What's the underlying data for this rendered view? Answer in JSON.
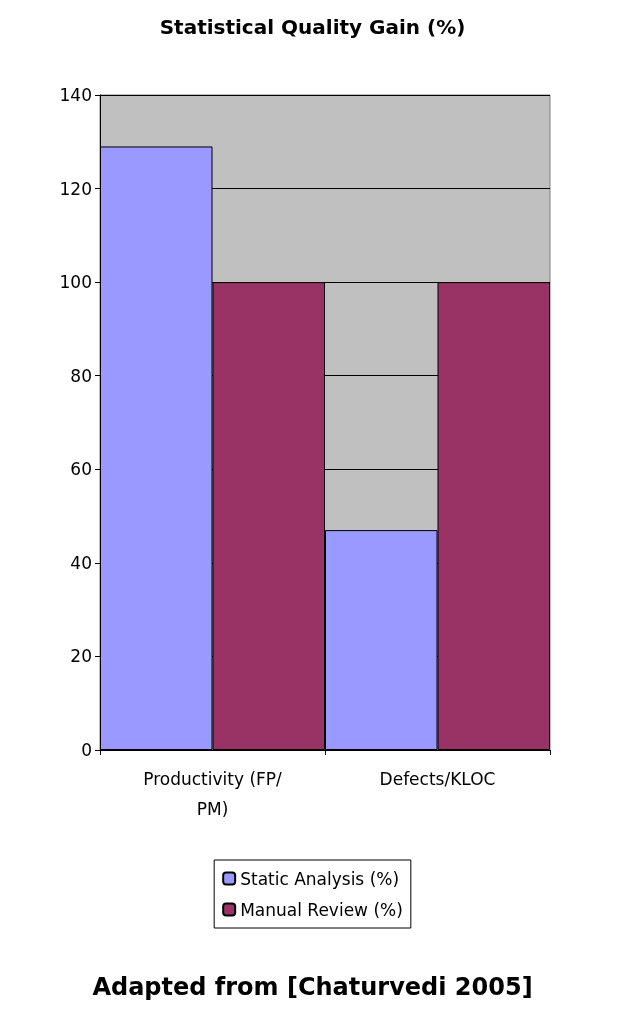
{
  "chart_data": {
    "type": "bar",
    "title": "Statistical Quality Gain (%)",
    "categories": [
      "Productivity (FP/PM)",
      "Defects/KLOC"
    ],
    "series": [
      {
        "name": "Static Analysis (%)",
        "color": "#9999ff",
        "values": [
          129,
          47
        ]
      },
      {
        "name": "Manual Review (%)",
        "color": "#993366",
        "values": [
          100,
          100
        ]
      }
    ],
    "ylim": [
      0,
      140
    ],
    "yticks": [
      0,
      20,
      40,
      60,
      80,
      100,
      120,
      140
    ],
    "grid": "y",
    "legend": "bottom",
    "annotations": [
      "Adapted from [Chaturvedi 2005]"
    ]
  }
}
